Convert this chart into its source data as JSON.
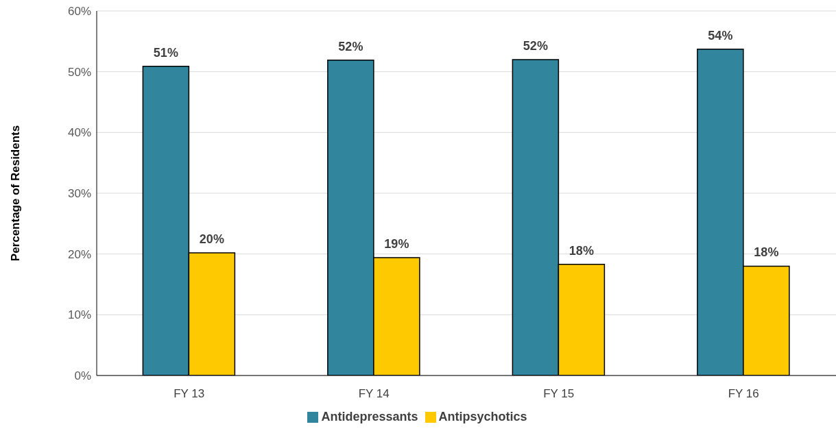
{
  "chart_data": {
    "type": "bar",
    "ylabel": "Percentage of Residents",
    "categories": [
      "FY 13",
      "FY 14",
      "FY 15",
      "FY 16"
    ],
    "series": [
      {
        "name": "Antidepressants",
        "color": "#31859c",
        "values": [
          50.9,
          51.9,
          52.0,
          53.7
        ],
        "value_labels": [
          "51%",
          "52%",
          "52%",
          "54%"
        ]
      },
      {
        "name": "Antipsychotics",
        "color": "#ffc900",
        "values": [
          20.2,
          19.4,
          18.3,
          18.0
        ],
        "value_labels": [
          "20%",
          "19%",
          "18%",
          "18%"
        ]
      }
    ],
    "ylim": [
      0,
      60
    ],
    "yticks": [
      {
        "value": 0,
        "label": "0%"
      },
      {
        "value": 10,
        "label": "10%"
      },
      {
        "value": 20,
        "label": "20%"
      },
      {
        "value": 30,
        "label": "30%"
      },
      {
        "value": 40,
        "label": "40%"
      },
      {
        "value": 50,
        "label": "50%"
      },
      {
        "value": 60,
        "label": "60%"
      }
    ],
    "grid": "y",
    "legend": "bottom"
  }
}
